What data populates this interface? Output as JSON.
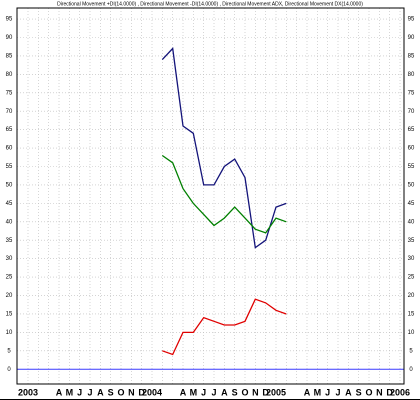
{
  "chart_data": {
    "type": "line",
    "title": "Directional Movement +DI(14.0000) , Directional Movement -DI(14.0000) , Directional Movement ADX, Directional Movement DX(14.0000)",
    "categories": [
      "2003",
      null,
      null,
      "A",
      "M",
      "J",
      "J",
      "A",
      "S",
      "O",
      "N",
      "D",
      "2004",
      null,
      null,
      "A",
      "M",
      "J",
      "J",
      "A",
      "S",
      "O",
      "N",
      "D",
      "2005",
      null,
      null,
      "A",
      "M",
      "J",
      "J",
      "A",
      "S",
      "O",
      "N",
      "D",
      "2006"
    ],
    "series": [
      {
        "color": "#14147a",
        "values": [
          null,
          null,
          null,
          null,
          null,
          null,
          null,
          null,
          null,
          null,
          null,
          null,
          null,
          84,
          87,
          66,
          64,
          50,
          50,
          55,
          57,
          52,
          33,
          35,
          44,
          45,
          null,
          null,
          null,
          null,
          null,
          null,
          null,
          null,
          null,
          null,
          null
        ]
      },
      {
        "color": "#008000",
        "values": [
          null,
          null,
          null,
          null,
          null,
          null,
          null,
          null,
          null,
          null,
          null,
          null,
          null,
          58,
          56,
          49,
          45,
          42,
          39,
          41,
          44,
          41,
          38,
          37,
          41,
          40,
          null,
          null,
          null,
          null,
          null,
          null,
          null,
          null,
          null,
          null,
          null
        ]
      },
      {
        "color": "#e00000",
        "values": [
          null,
          null,
          null,
          null,
          null,
          null,
          null,
          null,
          null,
          null,
          null,
          null,
          null,
          5,
          4,
          10,
          10,
          14,
          13,
          12,
          12,
          13,
          19,
          18,
          16,
          15,
          null,
          null,
          null,
          null,
          null,
          null,
          null,
          null,
          null,
          null,
          null
        ]
      }
    ],
    "ylim": [
      -4,
      98
    ],
    "yticks": [
      0,
      5,
      10,
      15,
      20,
      25,
      30,
      35,
      40,
      45,
      50,
      55,
      60,
      65,
      70,
      75,
      80,
      85,
      90,
      95
    ],
    "grid": true
  }
}
